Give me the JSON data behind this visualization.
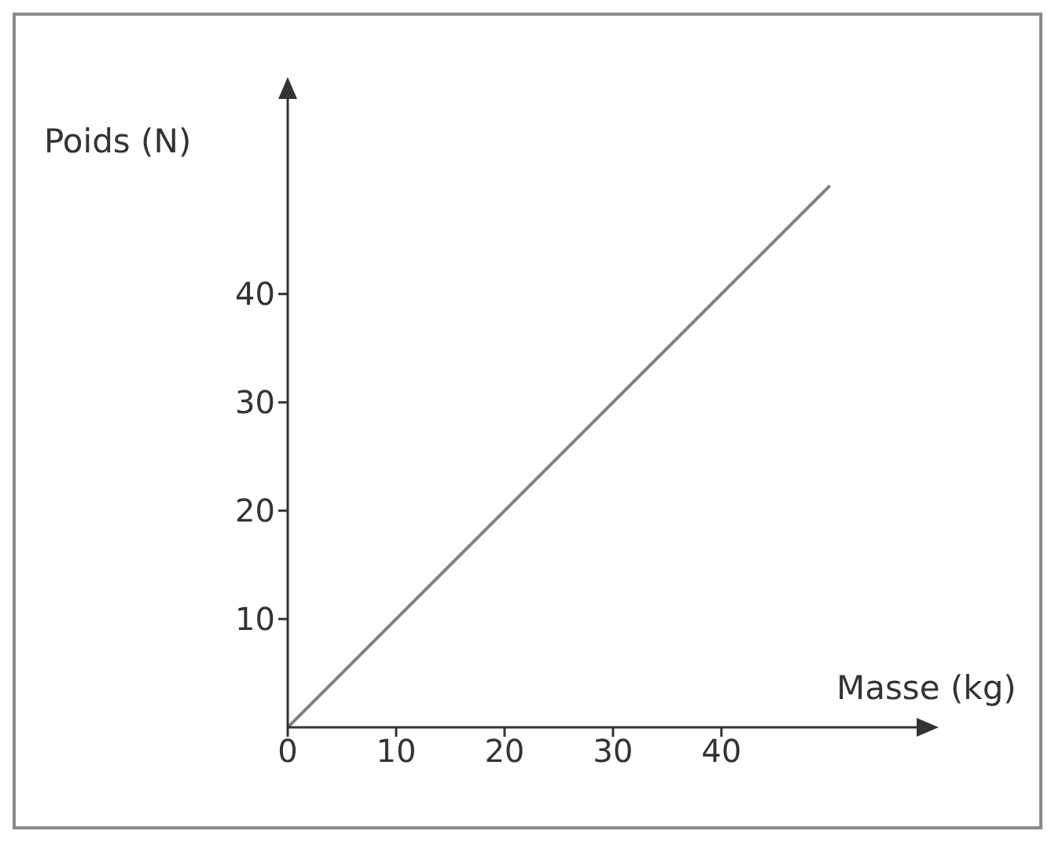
{
  "chart_data": {
    "type": "line",
    "xlabel": "Masse (kg)",
    "ylabel": "Poids (N)",
    "x": [
      0,
      50
    ],
    "series": [
      {
        "color": "#808080",
        "values": [
          0,
          50
        ]
      }
    ],
    "xlim": [
      0,
      58
    ],
    "ylim": [
      0,
      58
    ],
    "xticks": [
      0,
      10,
      20,
      30,
      40
    ],
    "yticks": [
      10,
      20,
      30,
      40
    ],
    "marker": "none",
    "line_style": "solid"
  }
}
